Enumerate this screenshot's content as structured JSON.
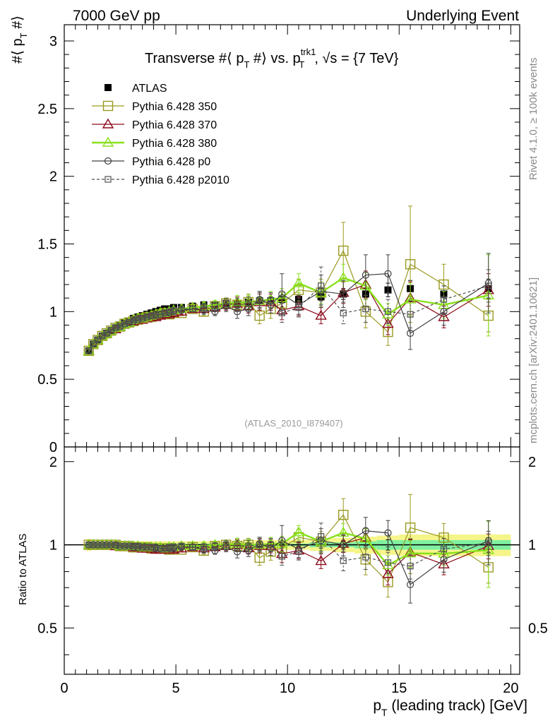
{
  "header": {
    "left": "7000 GeV pp",
    "right": "Underlying Event"
  },
  "side_labels": {
    "rivet": "Rivet 4.1.0, ≥ 100k events",
    "mcplots": "mcplots.cern.ch [arXiv:2401.10621]"
  },
  "watermark": "(ATLAS_2010_I879407)",
  "colors": {
    "atlas": "#000000",
    "p350": "#9a9a22",
    "p370": "#8b0a1a",
    "p380": "#88e01a",
    "p0": "#404040",
    "p2010": "#505050",
    "band_outer": "#f5f58a",
    "band_inner": "#7ff0a0"
  },
  "chart_data": {
    "type": "scatter",
    "title": "Transverse #⟨ p_T #⟩ vs. p_T^trk1, √s = {7 TeV}",
    "title_parts": {
      "main_a": "Transverse #⟨ p",
      "sub_a": "T",
      "main_b": " #⟩ vs. p",
      "sup_b": "trk1",
      "sub_b": "T",
      "main_c": ", √s = {7 TeV}"
    },
    "xlabel": "p_T (leading track) [GeV]",
    "xlabel_parts": {
      "p": "p",
      "sub": "T",
      "rest": " (leading track) [GeV]"
    },
    "ylabel": "#⟨ p_T #⟩",
    "ylabel_parts": {
      "main_a": "#⟨ p",
      "sub": "T",
      "main_b": " #⟩"
    },
    "ratio_ylabel": "Ratio to ATLAS",
    "xlim": [
      0,
      20.4
    ],
    "ylim": [
      0,
      3.12
    ],
    "ratio_ylim": [
      0.34,
      2.26
    ],
    "xticks": [
      0,
      5,
      10,
      15,
      20
    ],
    "xtick_labels": [
      "0",
      "5",
      "10",
      "15",
      "20"
    ],
    "yticks": [
      0,
      0.5,
      1,
      1.5,
      2,
      2.5,
      3
    ],
    "ytick_labels": [
      "0",
      "0.5",
      "1",
      "1.5",
      "2",
      "2.5",
      "3"
    ],
    "ratio_yticks": [
      0.5,
      1,
      2
    ],
    "ratio_ytick_labels": [
      "0.5",
      "1",
      "2"
    ],
    "x": [
      1.1,
      1.3,
      1.5,
      1.7,
      1.9,
      2.1,
      2.3,
      2.5,
      2.7,
      2.9,
      3.1,
      3.3,
      3.5,
      3.7,
      3.9,
      4.1,
      4.3,
      4.5,
      4.7,
      4.9,
      5.25,
      5.75,
      6.25,
      6.75,
      7.25,
      7.75,
      8.25,
      8.75,
      9.25,
      9.75,
      10.5,
      11.5,
      12.5,
      13.5,
      14.5,
      15.5,
      17.0,
      19.0
    ],
    "series": [
      {
        "key": "atlas",
        "name": "ATLAS",
        "marker": "filled-square",
        "values": [
          0.71,
          0.76,
          0.79,
          0.82,
          0.84,
          0.86,
          0.88,
          0.9,
          0.92,
          0.93,
          0.95,
          0.96,
          0.97,
          0.98,
          0.99,
          1.0,
          1.01,
          1.02,
          1.02,
          1.03,
          1.03,
          1.04,
          1.05,
          1.05,
          1.06,
          1.06,
          1.07,
          1.08,
          1.08,
          1.09,
          1.09,
          1.11,
          1.13,
          1.13,
          1.16,
          1.17,
          1.13,
          1.17
        ],
        "err": [
          0.01,
          0.01,
          0.01,
          0.01,
          0.01,
          0.01,
          0.01,
          0.01,
          0.01,
          0.01,
          0.01,
          0.01,
          0.01,
          0.01,
          0.01,
          0.01,
          0.01,
          0.01,
          0.01,
          0.01,
          0.01,
          0.01,
          0.01,
          0.01,
          0.01,
          0.01,
          0.01,
          0.02,
          0.02,
          0.02,
          0.02,
          0.03,
          0.04,
          0.04,
          0.05,
          0.06,
          0.06,
          0.07
        ]
      },
      {
        "key": "p350",
        "name": "Pythia 6.428 350",
        "marker": "open-square",
        "line": "solid",
        "values": [
          0.71,
          0.76,
          0.79,
          0.82,
          0.84,
          0.86,
          0.88,
          0.89,
          0.91,
          0.92,
          0.93,
          0.94,
          0.95,
          0.96,
          0.96,
          0.97,
          0.98,
          0.99,
          0.98,
          0.99,
          0.99,
          1.02,
          1.0,
          1.04,
          1.06,
          1.05,
          1.07,
          0.97,
          1.02,
          1.06,
          1.16,
          1.14,
          1.45,
          1.0,
          0.85,
          1.35,
          1.2,
          0.97
        ],
        "err": [
          0.01,
          0.01,
          0.01,
          0.01,
          0.01,
          0.01,
          0.01,
          0.01,
          0.01,
          0.01,
          0.01,
          0.01,
          0.01,
          0.01,
          0.02,
          0.02,
          0.02,
          0.02,
          0.02,
          0.02,
          0.02,
          0.02,
          0.03,
          0.03,
          0.04,
          0.05,
          0.06,
          0.06,
          0.07,
          0.08,
          0.08,
          0.1,
          0.21,
          0.12,
          0.1,
          0.43,
          0.15,
          0.12
        ]
      },
      {
        "key": "p370",
        "name": "Pythia 6.428 370",
        "marker": "open-triangle",
        "line": "solid",
        "values": [
          0.71,
          0.76,
          0.79,
          0.82,
          0.84,
          0.86,
          0.87,
          0.89,
          0.91,
          0.92,
          0.93,
          0.94,
          0.94,
          0.95,
          0.96,
          0.96,
          0.97,
          0.98,
          0.98,
          0.99,
          1.0,
          1.02,
          1.02,
          1.03,
          1.05,
          1.06,
          1.04,
          1.07,
          1.07,
          1.01,
          1.04,
          0.97,
          1.14,
          1.2,
          0.91,
          1.1,
          0.96,
          1.16
        ],
        "err": [
          0.01,
          0.01,
          0.01,
          0.01,
          0.01,
          0.01,
          0.01,
          0.01,
          0.01,
          0.01,
          0.01,
          0.01,
          0.01,
          0.01,
          0.02,
          0.02,
          0.02,
          0.02,
          0.02,
          0.02,
          0.02,
          0.02,
          0.03,
          0.03,
          0.04,
          0.05,
          0.05,
          0.06,
          0.06,
          0.07,
          0.07,
          0.06,
          0.08,
          0.1,
          0.08,
          0.12,
          0.08,
          0.12
        ]
      },
      {
        "key": "p380",
        "name": "Pythia 6.428 380",
        "marker": "open-triangle",
        "line": "thick",
        "values": [
          0.71,
          0.76,
          0.79,
          0.82,
          0.84,
          0.86,
          0.88,
          0.89,
          0.91,
          0.92,
          0.94,
          0.95,
          0.95,
          0.96,
          0.97,
          0.98,
          0.99,
          0.99,
          1.0,
          1.01,
          1.02,
          1.03,
          1.04,
          1.05,
          1.06,
          1.07,
          1.07,
          1.08,
          1.09,
          1.1,
          1.21,
          1.14,
          1.25,
          1.19,
          0.98,
          1.09,
          1.05,
          1.12
        ],
        "err": [
          0.01,
          0.01,
          0.01,
          0.01,
          0.01,
          0.01,
          0.01,
          0.01,
          0.01,
          0.01,
          0.01,
          0.01,
          0.01,
          0.01,
          0.02,
          0.02,
          0.02,
          0.02,
          0.02,
          0.02,
          0.02,
          0.02,
          0.03,
          0.03,
          0.04,
          0.05,
          0.05,
          0.06,
          0.06,
          0.07,
          0.07,
          0.08,
          0.1,
          0.1,
          0.08,
          0.12,
          0.1,
          0.3
        ]
      },
      {
        "key": "p0",
        "name": "Pythia 6.428 p0",
        "marker": "open-circle",
        "line": "solid",
        "values": [
          0.71,
          0.76,
          0.79,
          0.82,
          0.84,
          0.86,
          0.88,
          0.89,
          0.91,
          0.92,
          0.93,
          0.94,
          0.95,
          0.96,
          0.97,
          0.98,
          0.98,
          0.99,
          0.99,
          1.0,
          1.01,
          1.02,
          1.01,
          1.0,
          1.04,
          1.0,
          1.02,
          1.09,
          1.05,
          1.13,
          1.05,
          1.15,
          1.13,
          1.27,
          1.28,
          0.84,
          1.0,
          1.21
        ],
        "err": [
          0.01,
          0.01,
          0.01,
          0.01,
          0.01,
          0.01,
          0.01,
          0.01,
          0.01,
          0.01,
          0.01,
          0.01,
          0.01,
          0.01,
          0.02,
          0.02,
          0.02,
          0.02,
          0.02,
          0.02,
          0.02,
          0.02,
          0.03,
          0.03,
          0.04,
          0.05,
          0.05,
          0.06,
          0.06,
          0.15,
          0.07,
          0.12,
          0.1,
          0.15,
          0.14,
          0.12,
          0.1,
          0.22
        ]
      },
      {
        "key": "p2010",
        "name": "Pythia 6.428 p2010",
        "marker": "open-small-square",
        "line": "dashed",
        "values": [
          0.71,
          0.76,
          0.79,
          0.82,
          0.84,
          0.86,
          0.88,
          0.89,
          0.91,
          0.92,
          0.94,
          0.95,
          0.95,
          0.96,
          0.97,
          0.97,
          0.98,
          0.99,
          1.0,
          1.01,
          1.02,
          1.02,
          1.03,
          1.04,
          1.06,
          1.05,
          1.06,
          1.08,
          1.08,
          0.99,
          1.03,
          1.19,
          0.99,
          1.02,
          1.0,
          0.98,
          1.09,
          1.19
        ],
        "err": [
          0.01,
          0.01,
          0.01,
          0.01,
          0.01,
          0.01,
          0.01,
          0.01,
          0.01,
          0.01,
          0.01,
          0.01,
          0.01,
          0.01,
          0.02,
          0.02,
          0.02,
          0.02,
          0.02,
          0.02,
          0.02,
          0.02,
          0.03,
          0.03,
          0.04,
          0.05,
          0.05,
          0.06,
          0.06,
          0.07,
          0.07,
          0.14,
          0.08,
          0.1,
          0.09,
          0.1,
          0.1,
          0.12
        ]
      }
    ],
    "ratio_band": {
      "x_edges": [
        1.0,
        1.2,
        1.4,
        1.6,
        1.8,
        2.0,
        2.2,
        2.4,
        2.6,
        2.8,
        3.0,
        3.2,
        3.4,
        3.6,
        3.8,
        4.0,
        4.2,
        4.4,
        4.6,
        4.8,
        5.0,
        5.5,
        6.0,
        6.5,
        7.0,
        7.5,
        8.0,
        8.5,
        9.0,
        9.5,
        10.0,
        11.0,
        12.0,
        13.0,
        14.0,
        15.0,
        16.0,
        18.0,
        20.0
      ],
      "outer": [
        0.05,
        0.03,
        0.03,
        0.03,
        0.03,
        0.03,
        0.03,
        0.03,
        0.03,
        0.03,
        0.03,
        0.03,
        0.03,
        0.03,
        0.03,
        0.03,
        0.03,
        0.03,
        0.03,
        0.03,
        0.03,
        0.03,
        0.03,
        0.03,
        0.03,
        0.03,
        0.03,
        0.04,
        0.04,
        0.04,
        0.04,
        0.05,
        0.06,
        0.07,
        0.08,
        0.09,
        0.09,
        0.09
      ],
      "inner": [
        0.01,
        0.01,
        0.01,
        0.01,
        0.01,
        0.01,
        0.01,
        0.01,
        0.01,
        0.01,
        0.01,
        0.01,
        0.01,
        0.01,
        0.01,
        0.01,
        0.01,
        0.01,
        0.01,
        0.01,
        0.01,
        0.01,
        0.01,
        0.01,
        0.01,
        0.01,
        0.01,
        0.01,
        0.01,
        0.01,
        0.01,
        0.02,
        0.02,
        0.03,
        0.04,
        0.04,
        0.04,
        0.04
      ]
    }
  }
}
